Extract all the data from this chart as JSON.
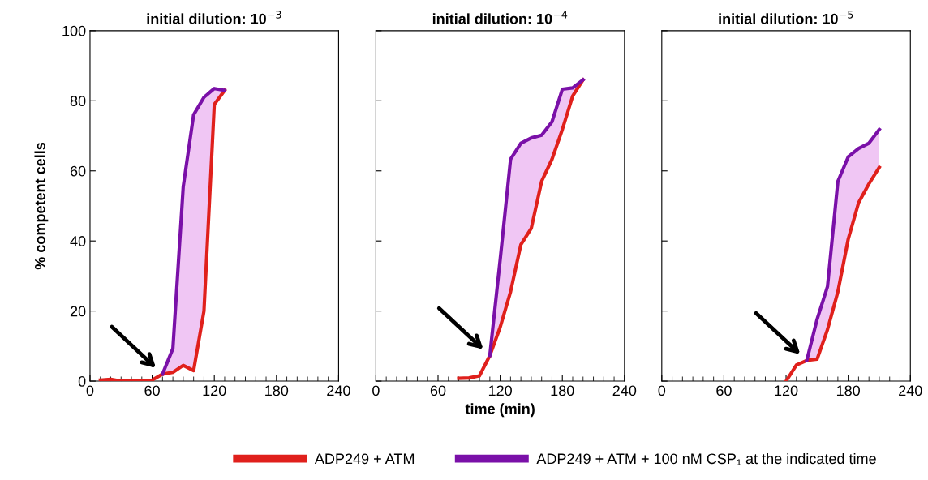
{
  "chart_data": [
    {
      "type": "line",
      "title": "initial dilution: 10$^{−3}$",
      "ylabel": "% competent cells",
      "xlim": [
        0,
        240
      ],
      "xticks": [
        0,
        60,
        120,
        180,
        240
      ],
      "ylim": [
        0,
        100
      ],
      "yticks": [
        0,
        20,
        40,
        60,
        80,
        100
      ],
      "grid": false,
      "legend": "bottom",
      "marker": "none",
      "line_style": "solid",
      "series": [
        {
          "name": "ADP249 + ATM",
          "color": "#e0201c",
          "x": [
            10,
            20,
            30,
            40,
            50,
            60,
            70,
            80,
            90,
            100,
            110,
            120,
            130
          ],
          "values": [
            0.3,
            0.5,
            0,
            0,
            0.1,
            0.3,
            2,
            2.5,
            4.5,
            3,
            20,
            79,
            83
          ]
        },
        {
          "name": "ADP249 + ATM + 100 nM CSP₁ at the indicated time",
          "color": "#7a10a8",
          "x": [
            70,
            80,
            90,
            100,
            110,
            120,
            130
          ],
          "values": [
            2,
            9.3,
            55.5,
            76,
            81,
            83.5,
            83
          ],
          "lower": [
            2,
            2.5,
            4.5,
            3,
            20,
            79,
            83
          ],
          "upper": [
            2,
            9.3,
            55.5,
            76,
            81,
            83.5,
            83
          ]
        }
      ]
    },
    {
      "type": "line",
      "title": "initial dilution: 10$^{−4}$",
      "xlabel": "time (min)",
      "xlim": [
        0,
        240
      ],
      "xticks": [
        0,
        60,
        120,
        180,
        240
      ],
      "ylim": [
        0,
        100
      ],
      "yticks": [
        0,
        20,
        40,
        60,
        80,
        100
      ],
      "grid": false,
      "tick_labels": "x",
      "marker": "none",
      "line_style": "solid",
      "series": [
        {
          "color": "#e0201c",
          "x": [
            80,
            90,
            100,
            110,
            120,
            130,
            140,
            150,
            160,
            170,
            180,
            190,
            200
          ],
          "values": [
            0.8,
            0.9,
            1.5,
            7.3,
            15.4,
            25.5,
            39,
            43.6,
            57,
            63.3,
            71.8,
            81.4,
            86
          ]
        },
        {
          "color": "#7a10a8",
          "x": [
            110,
            120,
            130,
            140,
            150,
            160,
            170,
            180,
            190,
            200
          ],
          "values": [
            7.3,
            34.7,
            63.3,
            67.9,
            69.4,
            70.2,
            74,
            83.3,
            83.7,
            86
          ],
          "lower": [
            7.3,
            15.4,
            25.5,
            39,
            43.6,
            57,
            63.3,
            71.8,
            81.4,
            86
          ],
          "upper": [
            7.3,
            34.7,
            63.3,
            67.9,
            69.4,
            70.2,
            74,
            83.3,
            83.7,
            86
          ]
        }
      ]
    },
    {
      "type": "line",
      "title": "initial dilution: 10$^{−5}$",
      "xlim": [
        0,
        240
      ],
      "xticks": [
        0,
        60,
        120,
        180,
        240
      ],
      "ylim": [
        0,
        100
      ],
      "yticks": [
        0,
        20,
        40,
        60,
        80,
        100
      ],
      "grid": false,
      "tick_labels": "x",
      "marker": "none",
      "line_style": "solid",
      "series": [
        {
          "color": "#e0201c",
          "x": [
            120,
            130,
            140,
            150,
            160,
            170,
            180,
            190,
            200,
            210
          ],
          "values": [
            0,
            4.6,
            5.9,
            6.3,
            14.7,
            25.5,
            40.5,
            50.9,
            56.3,
            61
          ]
        },
        {
          "color": "#7a10a8",
          "x": [
            140,
            150,
            160,
            170,
            180,
            190,
            200,
            210
          ],
          "values": [
            5.9,
            17.7,
            27,
            57,
            64,
            66.4,
            67.9,
            71.8
          ],
          "lower": [
            5.9,
            6.3,
            14.7,
            25.5,
            40.5,
            50.9,
            56.3,
            61
          ],
          "upper": [
            5.9,
            17.7,
            27,
            57,
            64,
            66.4,
            67.9,
            71.8
          ]
        }
      ]
    }
  ]
}
